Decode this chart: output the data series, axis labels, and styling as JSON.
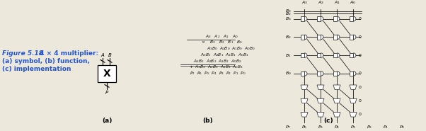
{
  "bg_color": "#ede8dc",
  "title_color": "#2255cc",
  "wire_color": "#222222",
  "gate_face": "#ffffff",
  "gate_edge": "#333333",
  "title_main": "Figure 5.18",
  "title_rest": " 4 × 4 multiplier:",
  "sub1": "(a) symbol, (b) function,",
  "sub2": "(c) implementation",
  "label_a": "(a)",
  "label_b": "(b)",
  "label_c": "(c)",
  "A_labels": [
    "$A_3$",
    "$A_2$",
    "$A_1$",
    "$A_0$"
  ],
  "B_labels": [
    "$B_3$",
    "$B_2$",
    "$B_1$",
    "$B_0$"
  ],
  "P_labels": [
    "$P_7$",
    "$P_6$",
    "$P_5$",
    "$P_4$",
    "$P_3$",
    "$P_2$",
    "$P_1$",
    "$P_0$"
  ],
  "func_lines": [
    "      $A_3$  $A_2$  $A_1$  $A_0$",
    "$\\times$      $B_3$  $B_2$  $B_1$  $B_0$",
    "  $A_3B_0$ $A_2B_0$ $A_1B_0$ $A_0B_0$",
    "$A_3B_1$ $A_2B_1$ $A_1B_1$ $A_0B_1$",
    "$A_3B_2$ $A_2B_2$ $A_1B_2$ $A_0B_2$",
    "$+$ $A_3B_3$ $A_2B_3$ $A_1B_3$ $A_0B_3$",
    "$P_7$  $P_6$  $P_5$  $P_4$  $P_3$  $P_2$  $P_1$  $P_0$"
  ]
}
